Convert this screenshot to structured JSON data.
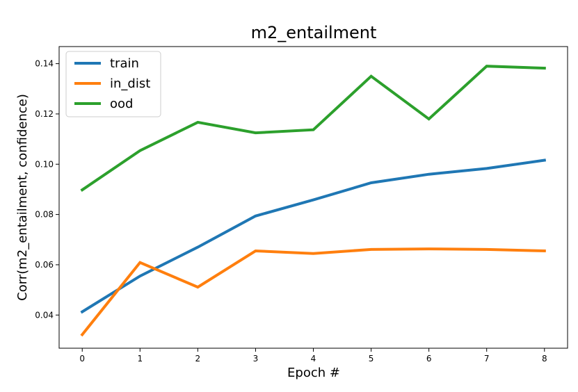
{
  "chart_data": {
    "type": "line",
    "title": "m2_entailment",
    "xlabel": "Epoch #",
    "ylabel": "Corr(m2_entailment, confidence)",
    "x": [
      0,
      1,
      2,
      3,
      4,
      5,
      6,
      7,
      8
    ],
    "xticks": [
      "0",
      "1",
      "2",
      "3",
      "4",
      "5",
      "6",
      "7",
      "8"
    ],
    "yticks": [
      "0.04",
      "0.06",
      "0.08",
      "0.10",
      "0.12",
      "0.14"
    ],
    "xlim": [
      -0.4,
      8.4
    ],
    "ylim": [
      0.0268,
      0.1468
    ],
    "grid": false,
    "legend_position": "top-left",
    "series": [
      {
        "name": "train",
        "color": "#1f77b4",
        "values": [
          0.0413,
          0.0555,
          0.067,
          0.0794,
          0.0858,
          0.0926,
          0.096,
          0.0983,
          0.1016
        ]
      },
      {
        "name": "in_dist",
        "color": "#ff7f0e",
        "values": [
          0.0322,
          0.0609,
          0.0511,
          0.0655,
          0.0645,
          0.0661,
          0.0663,
          0.0661,
          0.0655
        ]
      },
      {
        "name": "ood",
        "color": "#2ca02c",
        "values": [
          0.0898,
          0.1054,
          0.1167,
          0.1125,
          0.1137,
          0.135,
          0.118,
          0.139,
          0.1382
        ]
      }
    ]
  }
}
